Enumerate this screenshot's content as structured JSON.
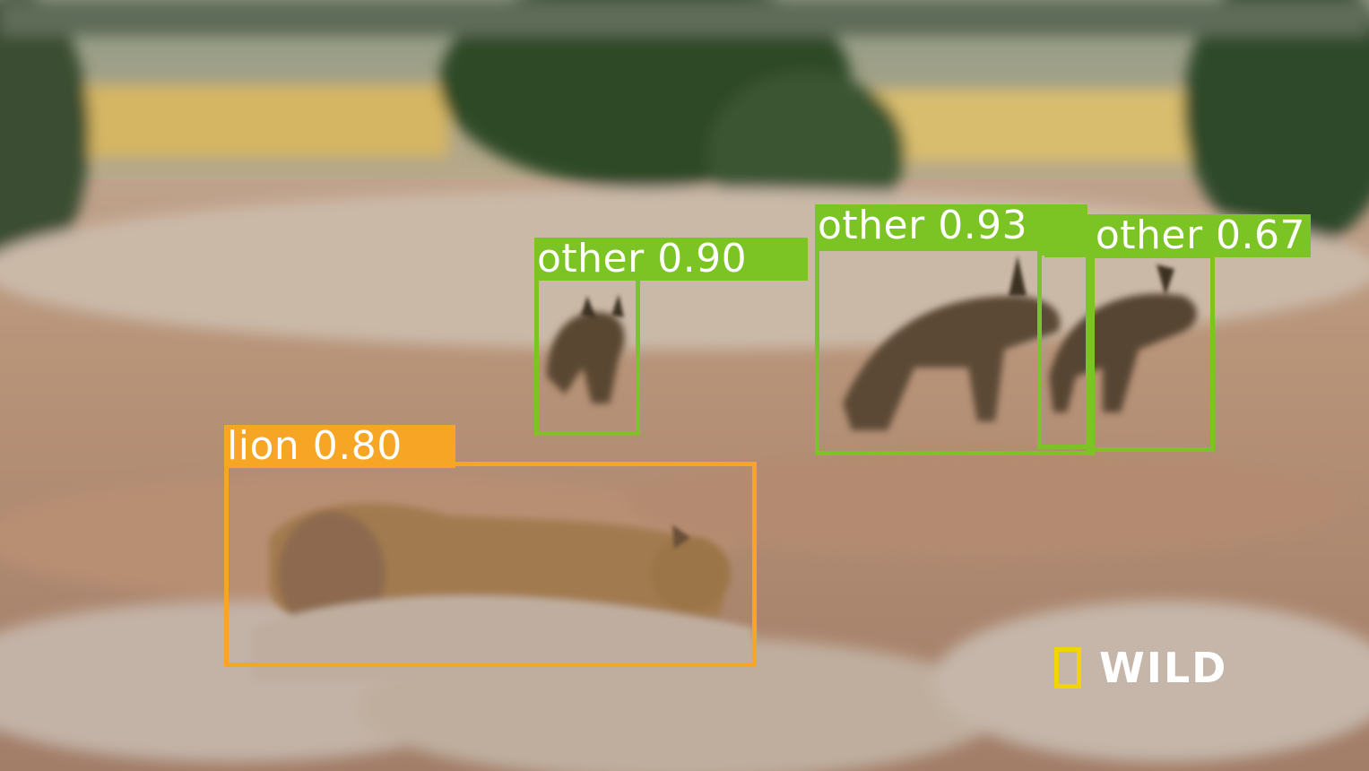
{
  "detections": [
    {
      "label": "lion 0.80",
      "color": "#f7a524"
    },
    {
      "label": "other 0.90",
      "color": "#7cc423"
    },
    {
      "label": "other 0.93",
      "color": "#7cc423"
    },
    {
      "label": "other 0.67",
      "color": "#7cc423"
    },
    {
      "label": "",
      "color": "#7cc423"
    }
  ],
  "watermark": {
    "text": "WILD",
    "accent": "#f2d400"
  }
}
